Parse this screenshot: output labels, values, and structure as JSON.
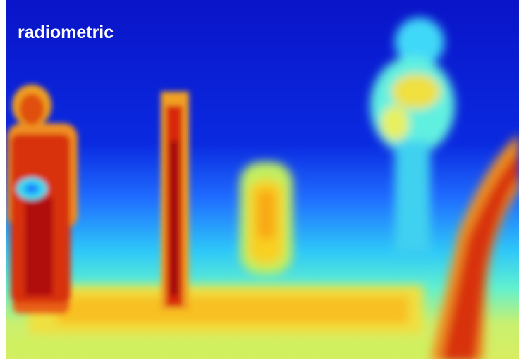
{
  "label": "radiometric"
}
